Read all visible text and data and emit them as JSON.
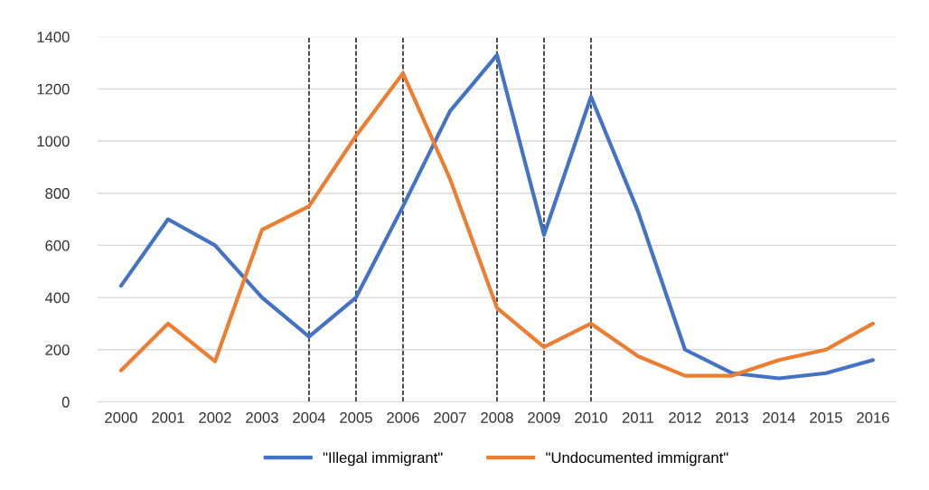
{
  "chart_data": {
    "type": "line",
    "x": [
      2000,
      2001,
      2002,
      2003,
      2004,
      2005,
      2006,
      2007,
      2008,
      2009,
      2010,
      2011,
      2012,
      2013,
      2014,
      2015,
      2016
    ],
    "xlim": [
      1999.5,
      2016.5
    ],
    "xticks": [
      2000,
      2001,
      2002,
      2003,
      2004,
      2005,
      2006,
      2007,
      2008,
      2009,
      2010,
      2011,
      2012,
      2013,
      2014,
      2015,
      2016
    ],
    "ylim": [
      0,
      1400
    ],
    "yticks": [
      0,
      200,
      400,
      600,
      800,
      1000,
      1200,
      1400
    ],
    "series": [
      {
        "name": "\"Illegal immigrant\"",
        "color": "#4472c4",
        "values": [
          445,
          700,
          600,
          400,
          250,
          400,
          750,
          1115,
          1330,
          640,
          1170,
          730,
          200,
          110,
          90,
          110,
          160
        ]
      },
      {
        "name": "\"Undocumented immigrant\"",
        "color": "#ed7d31",
        "values": [
          120,
          300,
          155,
          660,
          750,
          1020,
          1260,
          855,
          360,
          210,
          300,
          175,
          100,
          100,
          160,
          200,
          300
        ]
      }
    ],
    "ref_lines": [
      {
        "axis": "x",
        "value": 2004,
        "color": "#000000",
        "line_style": "dashed"
      },
      {
        "axis": "x",
        "value": 2005,
        "color": "#000000",
        "line_style": "dashed"
      },
      {
        "axis": "x",
        "value": 2006,
        "color": "#000000",
        "line_style": "dashed"
      },
      {
        "axis": "x",
        "value": 2008,
        "color": "#000000",
        "line_style": "dashed"
      },
      {
        "axis": "x",
        "value": 2009,
        "color": "#000000",
        "line_style": "dashed"
      },
      {
        "axis": "x",
        "value": 2010,
        "color": "#000000",
        "line_style": "dashed"
      }
    ],
    "grid": "y",
    "legend": "bottom",
    "marker": "none",
    "line_style": "solid"
  }
}
